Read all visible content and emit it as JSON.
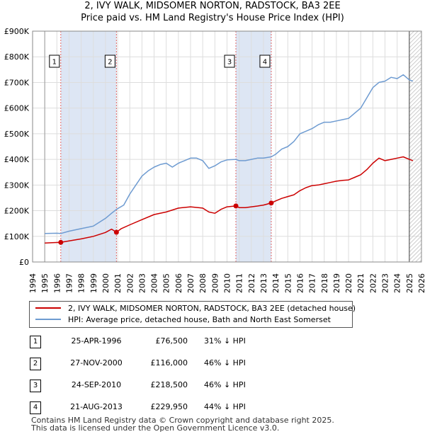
{
  "title": {
    "line1": "2, IVY WALK, MIDSOMER NORTON, RADSTOCK, BA3 2EE",
    "line2": "Price paid vs. HM Land Registry's House Price Index (HPI)"
  },
  "colors": {
    "property": "#cc0000",
    "hpi": "#6e9bd1",
    "shade": "#dde6f4",
    "grid": "#dddddd",
    "marker_line": "#e06666"
  },
  "chart_data": {
    "type": "line",
    "title": "Price paid vs. HM Land Registry's House Price Index (HPI)",
    "xlabel": "",
    "ylabel": "",
    "xlim": [
      1994,
      2026
    ],
    "ylim": [
      0,
      900000
    ],
    "x_ticks": [
      "1994",
      "1995",
      "1996",
      "1997",
      "1998",
      "1999",
      "2000",
      "2001",
      "2002",
      "2003",
      "2004",
      "2005",
      "2006",
      "2007",
      "2008",
      "2009",
      "2010",
      "2011",
      "2012",
      "2013",
      "2014",
      "2015",
      "2016",
      "2017",
      "2018",
      "2019",
      "2020",
      "2021",
      "2022",
      "2023",
      "2024",
      "2025",
      "2026"
    ],
    "y_ticks": [
      {
        "value": 0,
        "label": "£0"
      },
      {
        "value": 100000,
        "label": "£100K"
      },
      {
        "value": 200000,
        "label": "£200K"
      },
      {
        "value": 300000,
        "label": "£300K"
      },
      {
        "value": 400000,
        "label": "£400K"
      },
      {
        "value": 500000,
        "label": "£500K"
      },
      {
        "value": 600000,
        "label": "£600K"
      },
      {
        "value": 700000,
        "label": "£700K"
      },
      {
        "value": 800000,
        "label": "£800K"
      },
      {
        "value": 900000,
        "label": "£900K"
      }
    ],
    "grid": true,
    "data_start": 1995.0,
    "data_end": 2025.3,
    "hatch_from": 2025.0,
    "shaded_ranges": [
      [
        1996.32,
        2000.9
      ],
      [
        2010.73,
        2013.64
      ]
    ],
    "series": [
      {
        "name": "HPI: Average price, detached house, Bath and North East Somerset",
        "x": [
          1995.0,
          1996.0,
          1996.32,
          1997.0,
          1998.0,
          1999.0,
          2000.0,
          2000.5,
          2000.9,
          2001.5,
          2002.0,
          2002.5,
          2003.0,
          2003.5,
          2004.0,
          2004.5,
          2005.0,
          2005.5,
          2006.0,
          2006.5,
          2007.0,
          2007.5,
          2008.0,
          2008.5,
          2009.0,
          2009.5,
          2010.0,
          2010.73,
          2011.0,
          2011.5,
          2012.0,
          2012.5,
          2013.0,
          2013.64,
          2014.0,
          2014.5,
          2015.0,
          2015.5,
          2016.0,
          2016.5,
          2017.0,
          2017.5,
          2018.0,
          2018.5,
          2019.0,
          2019.5,
          2020.0,
          2020.5,
          2021.0,
          2021.5,
          2022.0,
          2022.5,
          2023.0,
          2023.5,
          2024.0,
          2024.5,
          2025.0,
          2025.3
        ],
        "y": [
          111000,
          112000,
          111000,
          120000,
          130000,
          140000,
          170000,
          190000,
          205000,
          222000,
          265000,
          300000,
          335000,
          355000,
          370000,
          380000,
          385000,
          370000,
          385000,
          395000,
          405000,
          405000,
          395000,
          365000,
          375000,
          390000,
          398000,
          400000,
          395000,
          395000,
          400000,
          405000,
          405000,
          410000,
          420000,
          440000,
          450000,
          470000,
          500000,
          510000,
          520000,
          535000,
          545000,
          545000,
          550000,
          555000,
          560000,
          580000,
          600000,
          640000,
          680000,
          700000,
          705000,
          720000,
          715000,
          730000,
          710000,
          705000
        ]
      },
      {
        "name": "2, IVY WALK, MIDSOMER NORTON, RADSTOCK, BA3 2EE (detached house)",
        "x": [
          1995.0,
          1995.6,
          1996.32,
          1997.0,
          1998.0,
          1999.0,
          2000.0,
          2000.5,
          2000.9,
          2001.3,
          2002.0,
          2003.0,
          2004.0,
          2005.0,
          2006.0,
          2007.0,
          2008.0,
          2008.5,
          2009.0,
          2009.5,
          2010.0,
          2010.73,
          2011.0,
          2011.5,
          2012.0,
          2012.5,
          2013.0,
          2013.64,
          2014.0,
          2014.5,
          2015.0,
          2015.5,
          2016.0,
          2016.5,
          2017.0,
          2017.5,
          2018.0,
          2018.5,
          2019.0,
          2019.5,
          2020.0,
          2020.5,
          2021.0,
          2021.5,
          2022.0,
          2022.5,
          2023.0,
          2023.5,
          2024.0,
          2024.5,
          2025.0,
          2025.3
        ],
        "y": [
          74000,
          75000,
          76500,
          82000,
          90000,
          100000,
          115000,
          128000,
          116000,
          130000,
          145000,
          165000,
          185000,
          195000,
          210000,
          215000,
          210000,
          195000,
          190000,
          205000,
          215000,
          218500,
          212000,
          212000,
          215000,
          218000,
          222000,
          229950,
          238000,
          248000,
          255000,
          262000,
          278000,
          290000,
          298000,
          300000,
          305000,
          310000,
          315000,
          318000,
          320000,
          330000,
          340000,
          360000,
          385000,
          405000,
          395000,
          400000,
          405000,
          410000,
          400000,
          395000
        ]
      }
    ],
    "sales_markers": [
      {
        "label": "1",
        "x": 1996.32,
        "y": 76500
      },
      {
        "label": "2",
        "x": 2000.9,
        "y": 116000
      },
      {
        "label": "3",
        "x": 2010.73,
        "y": 218500
      },
      {
        "label": "4",
        "x": 2013.64,
        "y": 229950
      }
    ]
  },
  "legend": {
    "property": "2, IVY WALK, MIDSOMER NORTON, RADSTOCK, BA3 2EE (detached house)",
    "hpi": "HPI: Average price, detached house, Bath and North East Somerset"
  },
  "sales": [
    {
      "num": "1",
      "date": "25-APR-1996",
      "price": "£76,500",
      "hpi": "31% ↓ HPI"
    },
    {
      "num": "2",
      "date": "27-NOV-2000",
      "price": "£116,000",
      "hpi": "46% ↓ HPI"
    },
    {
      "num": "3",
      "date": "24-SEP-2010",
      "price": "£218,500",
      "hpi": "46% ↓ HPI"
    },
    {
      "num": "4",
      "date": "21-AUG-2013",
      "price": "£229,950",
      "hpi": "44% ↓ HPI"
    }
  ],
  "footer": {
    "line1": "Contains HM Land Registry data © Crown copyright and database right 2025.",
    "line2": "This data is licensed under the Open Government Licence v3.0."
  }
}
